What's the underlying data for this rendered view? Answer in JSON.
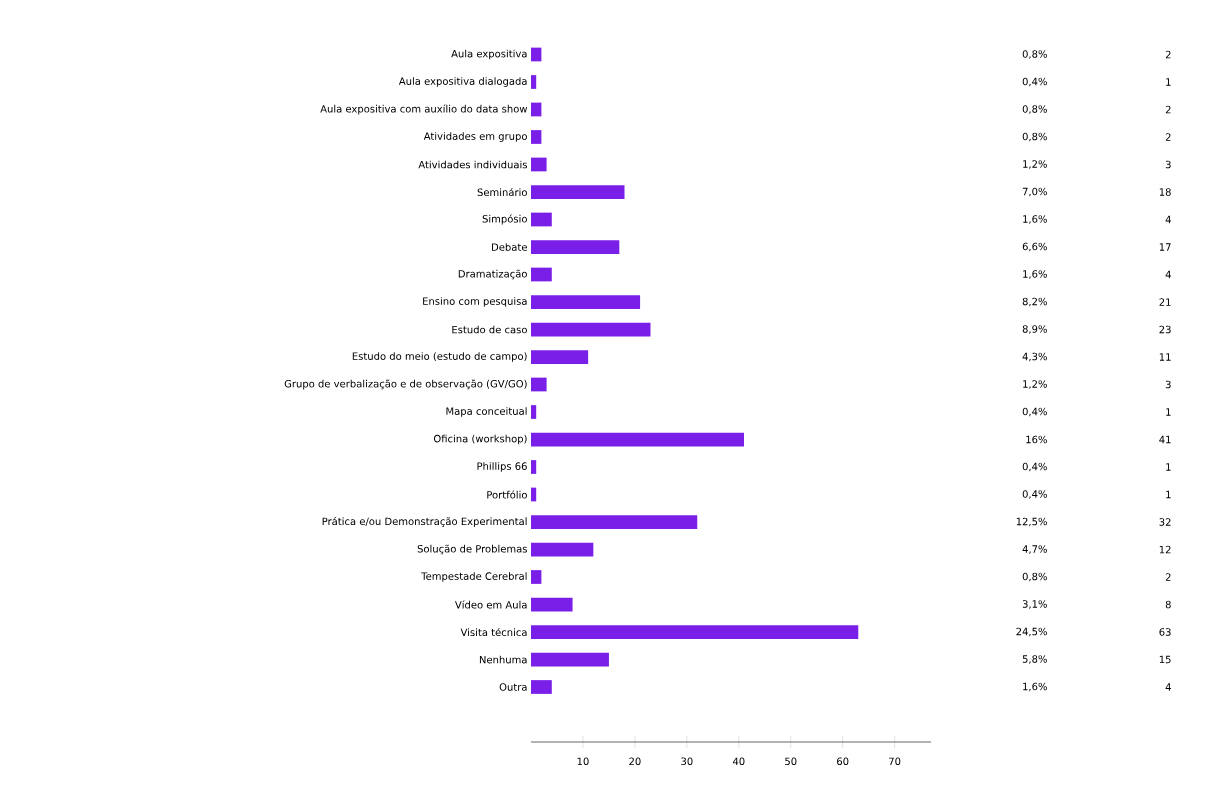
{
  "chart_data": {
    "type": "bar",
    "orientation": "horizontal",
    "categories": [
      "Aula expositiva",
      "Aula expositiva dialogada",
      "Aula expositiva com auxílio do data show",
      "Atividades em grupo",
      "Atividades individuais",
      "Seminário",
      "Simpósio",
      "Debate",
      "Dramatização",
      "Ensino com pesquisa",
      "Estudo de caso",
      "Estudo do meio (estudo de campo)",
      "Grupo de verbalização e de observação (GV/GO)",
      "Mapa conceitual",
      "Oficina (workshop)",
      "Phillips 66",
      "Portfólio",
      "Prática e/ou Demonstração Experimental",
      "Solução de Problemas",
      "Tempestade Cerebral",
      "Vídeo em Aula",
      "Visita técnica",
      "Nenhuma",
      "Outra"
    ],
    "values": [
      2,
      1,
      2,
      2,
      3,
      18,
      4,
      17,
      4,
      21,
      23,
      11,
      3,
      1,
      41,
      1,
      1,
      32,
      12,
      2,
      8,
      63,
      15,
      4
    ],
    "data_labels": true,
    "annotations": [
      "0,8%",
      "0,4%",
      "0,8%",
      "0,8%",
      "1,2%",
      "7,0%",
      "1,6%",
      "6,6%",
      "1,6%",
      "8,2%",
      "8,9%",
      "4,3%",
      "1,2%",
      "0,4%",
      "16%",
      "0,4%",
      "0,4%",
      "12,5%",
      "4,7%",
      "0,8%",
      "3,1%",
      "24,5%",
      "5,8%",
      "1,6%"
    ],
    "color": "#7a1fe8",
    "xlim": [
      0,
      77
    ],
    "xticks": [
      10,
      20,
      30,
      40,
      50,
      60,
      70
    ]
  }
}
